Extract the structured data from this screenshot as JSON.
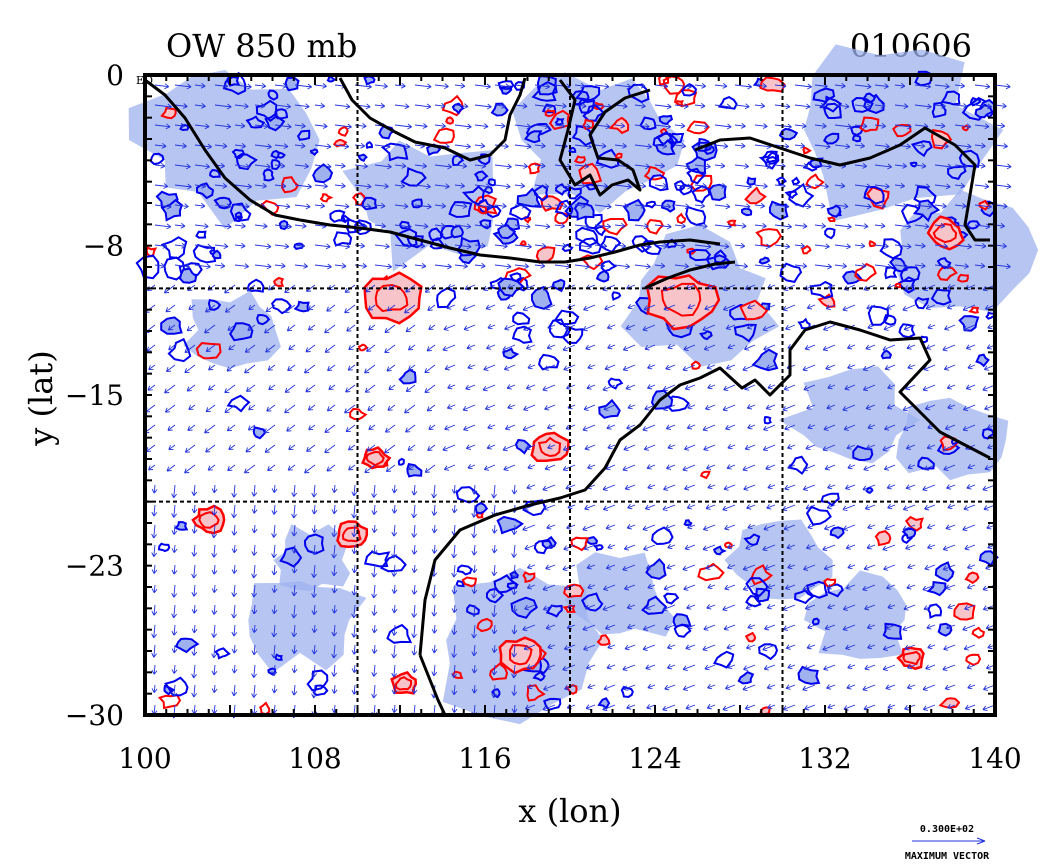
{
  "header": {
    "title": "OW 850 mb",
    "date": "010606"
  },
  "axes": {
    "xlabel": "x (lon)",
    "ylabel": "y (lat)",
    "xlim": [
      100,
      140
    ],
    "ylim": [
      -30,
      0
    ],
    "xticks": [
      "100",
      "108",
      "116",
      "124",
      "132",
      "140"
    ],
    "yticks": [
      "0",
      "-8",
      "-15",
      "-23",
      "-30"
    ],
    "origin_annotation": "EQ",
    "gridlines_lon": [
      110,
      120,
      130
    ],
    "gridlines_lat": [
      -10,
      -20
    ]
  },
  "legend": {
    "vector_scale": "0.300E+02",
    "vector_caption": "MAXIMUM VECTOR"
  },
  "colors": {
    "coast": "#000000",
    "positive_contour": "#ff0000",
    "positive_fill": "#f7c4c9",
    "negative_contour": "#0000ee",
    "negative_fill": "#9fb1ef",
    "vector": "#2233dd",
    "grid": "#000000"
  }
}
